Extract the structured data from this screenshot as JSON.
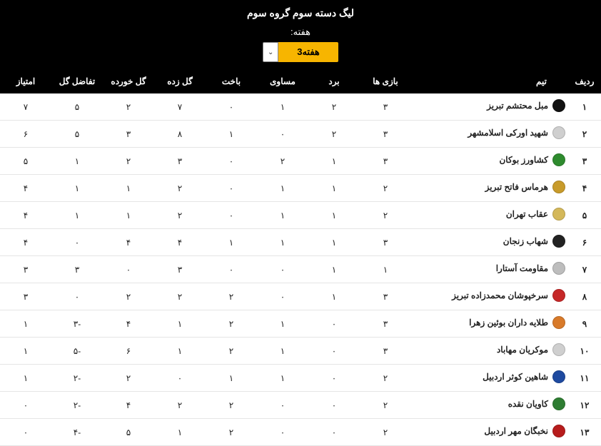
{
  "header": {
    "title": "لیگ دسته سوم گروه سوم",
    "week_label": "هفته:",
    "week_value": "هفته3"
  },
  "columns": {
    "rank": "ردیف",
    "team": "تیم",
    "played": "بازی ها",
    "won": "برد",
    "draw": "مساوی",
    "lost": "باخت",
    "gf": "گل زده",
    "ga": "گل خورده",
    "gd": "تفاضل گل",
    "pts": "امتیاز"
  },
  "rows": [
    {
      "rank": "۱",
      "team": "مبل محتشم تبریز",
      "logo_color": "#111111",
      "played": "۳",
      "won": "۲",
      "draw": "۱",
      "lost": "۰",
      "gf": "۷",
      "ga": "۲",
      "gd": "۵",
      "pts": "۷"
    },
    {
      "rank": "۲",
      "team": "شهید اورکی اسلامشهر",
      "logo_color": "#cfcfcf",
      "played": "۳",
      "won": "۲",
      "draw": "۰",
      "lost": "۱",
      "gf": "۸",
      "ga": "۳",
      "gd": "۵",
      "pts": "۶"
    },
    {
      "rank": "۳",
      "team": "کشاورز بوکان",
      "logo_color": "#2e8b2e",
      "played": "۳",
      "won": "۱",
      "draw": "۲",
      "lost": "۰",
      "gf": "۳",
      "ga": "۲",
      "gd": "۱",
      "pts": "۵"
    },
    {
      "rank": "۴",
      "team": "هرماس فاتح تبریز",
      "logo_color": "#c89b2a",
      "played": "۲",
      "won": "۱",
      "draw": "۱",
      "lost": "۰",
      "gf": "۲",
      "ga": "۱",
      "gd": "۱",
      "pts": "۴"
    },
    {
      "rank": "۵",
      "team": "عقاب تهران",
      "logo_color": "#d4b85a",
      "played": "۲",
      "won": "۱",
      "draw": "۱",
      "lost": "۰",
      "gf": "۲",
      "ga": "۱",
      "gd": "۱",
      "pts": "۴"
    },
    {
      "rank": "۶",
      "team": "شهاب زنجان",
      "logo_color": "#222222",
      "played": "۳",
      "won": "۱",
      "draw": "۱",
      "lost": "۱",
      "gf": "۴",
      "ga": "۴",
      "gd": "۰",
      "pts": "۴"
    },
    {
      "rank": "۷",
      "team": "مقاومت آستارا",
      "logo_color": "#bdbdbd",
      "played": "۱",
      "won": "۱",
      "draw": "۰",
      "lost": "۰",
      "gf": "۳",
      "ga": "۰",
      "gd": "۳",
      "pts": "۳"
    },
    {
      "rank": "۸",
      "team": "سرخپوشان محمدزاده تبریز",
      "logo_color": "#c62828",
      "played": "۳",
      "won": "۱",
      "draw": "۰",
      "lost": "۲",
      "gf": "۲",
      "ga": "۲",
      "gd": "۰",
      "pts": "۳"
    },
    {
      "rank": "۹",
      "team": "طلایه داران بوئین زهرا",
      "logo_color": "#d87a2a",
      "played": "۳",
      "won": "۰",
      "draw": "۱",
      "lost": "۲",
      "gf": "۱",
      "ga": "۴",
      "gd": "-۳",
      "pts": "۱"
    },
    {
      "rank": "۱۰",
      "team": "موکریان مهاباد",
      "logo_color": "#cfcfcf",
      "played": "۳",
      "won": "۰",
      "draw": "۱",
      "lost": "۲",
      "gf": "۱",
      "ga": "۶",
      "gd": "-۵",
      "pts": "۱"
    },
    {
      "rank": "۱۱",
      "team": "شاهین کوثر اردبیل",
      "logo_color": "#1e4aa0",
      "played": "۲",
      "won": "۰",
      "draw": "۱",
      "lost": "۱",
      "gf": "۰",
      "ga": "۲",
      "gd": "-۲",
      "pts": "۱"
    },
    {
      "rank": "۱۲",
      "team": "کاویان نقده",
      "logo_color": "#2e7d32",
      "played": "۲",
      "won": "۰",
      "draw": "۰",
      "lost": "۲",
      "gf": "۲",
      "ga": "۴",
      "gd": "-۲",
      "pts": "۰"
    },
    {
      "rank": "۱۳",
      "team": "نخبگان مهر اردبیل",
      "logo_color": "#b71c1c",
      "played": "۲",
      "won": "۰",
      "draw": "۰",
      "lost": "۲",
      "gf": "۱",
      "ga": "۵",
      "gd": "-۴",
      "pts": "۰"
    }
  ]
}
